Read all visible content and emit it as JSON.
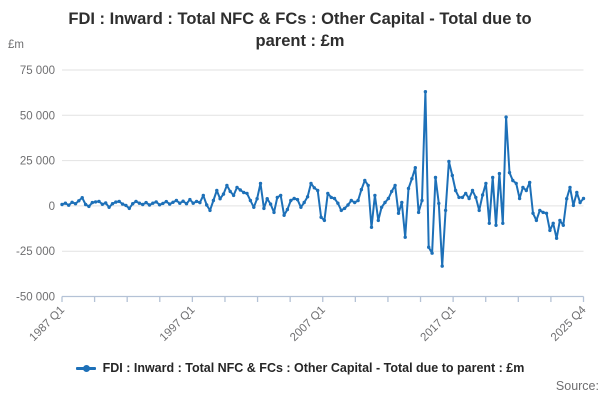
{
  "header": {
    "title_line1": "FDI : Inward : Total NFC & FCs : Other Capital - Total due to",
    "title_line2": "parent : £m",
    "title_full": "FDI : Inward : Total NFC & FCs : Other Capital - Total due to parent : £m"
  },
  "legend": {
    "label": "FDI : Inward : Total NFC & FCs : Other Capital - Total due to parent : £m"
  },
  "footer": {
    "source": "Source:"
  },
  "colors": {
    "line": "#1d70b8",
    "grid": "#e2e2e2",
    "axis": "#b4c2d6",
    "muted_text": "#6f6f71",
    "title_text": "#2e2e2e"
  },
  "chart_data": {
    "type": "line",
    "title": "FDI : Inward : Total NFC & FCs : Other Capital - Total due to parent : £m",
    "xlabel": "",
    "ylabel": "£m",
    "y_unit": "£m",
    "frequency": "quarterly",
    "x_start": "1987 Q1",
    "x_end": "2025 Q4",
    "ylim": [
      -50000,
      75000
    ],
    "grid": "horizontal",
    "legend_position": "bottom",
    "series_name": "FDI : Inward : Total NFC & FCs : Other Capital - Total due to parent : £m",
    "y_ticks": [
      75000,
      50000,
      25000,
      0,
      -25000,
      -50000
    ],
    "y_tick_labels": [
      "75 000",
      "50 000",
      "25 000",
      "0",
      "-25 000",
      "-50 000"
    ],
    "x_tick_labels": [
      "1987 Q1",
      "1997 Q1",
      "2007 Q1",
      "2017 Q1",
      "2025 Q4"
    ],
    "minor_tick_count": 17,
    "labeled_tick_indices": [
      0,
      4,
      8,
      12,
      16
    ],
    "values": [
      800,
      1500,
      400,
      2000,
      1200,
      2800,
      4500,
      800,
      -300,
      1800,
      2200,
      2500,
      900,
      1600,
      -800,
      1200,
      2100,
      2500,
      1000,
      300,
      -1400,
      1200,
      2500,
      1500,
      800,
      1800,
      500,
      1500,
      2200,
      600,
      1400,
      2400,
      1000,
      2000,
      3000,
      1500,
      2600,
      1200,
      3500,
      1500,
      2500,
      1800,
      5800,
      500,
      -2500,
      3000,
      8500,
      4000,
      6500,
      11300,
      8000,
      5800,
      10200,
      8800,
      7400,
      6900,
      3000,
      -800,
      4000,
      12400,
      -1400,
      4000,
      1000,
      -3600,
      4700,
      5800,
      -5200,
      -2000,
      3000,
      4100,
      3500,
      -800,
      1900,
      5000,
      12400,
      10000,
      8500,
      -6300,
      -8000,
      6900,
      4700,
      4100,
      1500,
      -2500,
      -1400,
      500,
      3000,
      1900,
      3000,
      9000,
      14000,
      11300,
      -11800,
      5800,
      -8000,
      -800,
      1900,
      4100,
      8000,
      11300,
      -4100,
      1900,
      -17300,
      9600,
      15000,
      21100,
      -3600,
      3000,
      63000,
      -22800,
      -26100,
      15700,
      1400,
      -33200,
      -2500,
      24500,
      16800,
      8500,
      4700,
      4700,
      6900,
      4100,
      8500,
      4700,
      -2500,
      6000,
      12400,
      -9600,
      15700,
      -10700,
      17800,
      -9600,
      49000,
      18400,
      14000,
      12400,
      4100,
      10200,
      8500,
      12900,
      -4100,
      -8000,
      -2500,
      -3600,
      -4100,
      -13500,
      -9600,
      -17900,
      -8000,
      -10700,
      4000,
      10200,
      300,
      7400,
      1900,
      4100
    ]
  }
}
